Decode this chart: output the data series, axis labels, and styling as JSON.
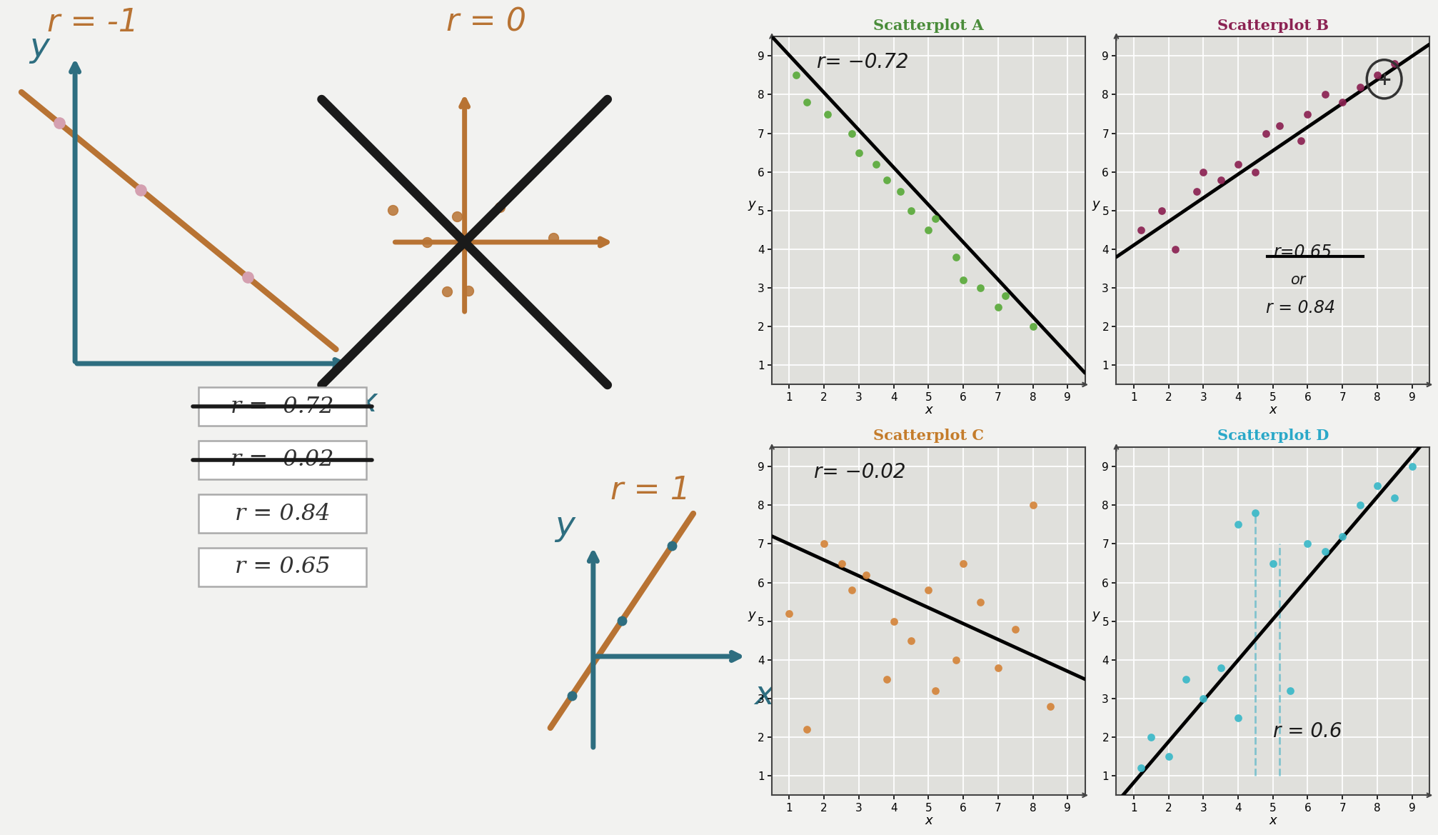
{
  "bg_color": "#f0eff0",
  "teal": "#2e6e80",
  "orange_brown": "#b87333",
  "black": "#1a1a1a",
  "scatter_A_title": "Scatterplot A",
  "scatter_B_title": "Scatterplot B",
  "scatter_C_title": "Scatterplot C",
  "scatter_D_title": "Scatterplot D",
  "scatter_A_title_color": "#4a8c3a",
  "scatter_B_title_color": "#8b2252",
  "scatter_C_title_color": "#c47c2b",
  "scatter_D_title_color": "#2aa8c8",
  "scatter_A_dot_color": "#5aaa3a",
  "scatter_B_dot_color": "#8b2252",
  "scatter_C_dot_color": "#d4843a",
  "scatter_D_dot_color": "#3ab8c8",
  "scatter_A_x": [
    1.2,
    1.5,
    2.1,
    2.8,
    3.0,
    3.5,
    3.8,
    4.2,
    4.5,
    5.0,
    5.2,
    5.8,
    6.0,
    6.5,
    7.0,
    7.2,
    8.0
  ],
  "scatter_A_y": [
    8.5,
    7.8,
    7.5,
    7.0,
    6.5,
    6.2,
    5.8,
    5.5,
    5.0,
    4.5,
    4.8,
    3.8,
    3.2,
    3.0,
    2.5,
    2.8,
    2.0
  ],
  "scatter_B_x": [
    1.2,
    1.8,
    2.2,
    2.8,
    3.0,
    3.5,
    4.0,
    4.5,
    4.8,
    5.2,
    5.8,
    6.0,
    6.5,
    7.0,
    7.5,
    8.0,
    8.5
  ],
  "scatter_B_y": [
    4.5,
    5.0,
    4.0,
    5.5,
    6.0,
    5.8,
    6.2,
    6.0,
    7.0,
    7.2,
    6.8,
    7.5,
    8.0,
    7.8,
    8.2,
    8.5,
    8.8
  ],
  "scatter_C_x": [
    1.0,
    1.5,
    2.0,
    2.5,
    2.8,
    3.2,
    3.8,
    4.0,
    4.5,
    5.0,
    5.2,
    5.8,
    6.0,
    6.5,
    7.0,
    7.5,
    8.0,
    8.5
  ],
  "scatter_C_y": [
    5.2,
    2.2,
    7.0,
    6.5,
    5.8,
    6.2,
    3.5,
    5.0,
    4.5,
    5.8,
    3.2,
    4.0,
    6.5,
    5.5,
    3.8,
    4.8,
    8.0,
    2.8
  ],
  "scatter_D_x": [
    1.2,
    1.5,
    2.0,
    2.5,
    3.0,
    3.5,
    4.0,
    4.0,
    4.5,
    5.0,
    5.5,
    6.0,
    6.5,
    7.0,
    7.5,
    8.0,
    8.5,
    9.0
  ],
  "scatter_D_y": [
    1.2,
    2.0,
    1.5,
    3.5,
    3.0,
    3.8,
    7.5,
    2.5,
    7.8,
    6.5,
    3.2,
    7.0,
    6.8,
    7.2,
    8.0,
    8.5,
    8.2,
    9.0
  ],
  "r_values": [
    "r = 0.65",
    "r = 0.84",
    "r = -0.02",
    "r = -0.72"
  ],
  "grid_bg": "#e0e0dc",
  "label_r_neg1": "r = -1",
  "label_r_0": "r = 0",
  "label_r_1": "r = 1"
}
